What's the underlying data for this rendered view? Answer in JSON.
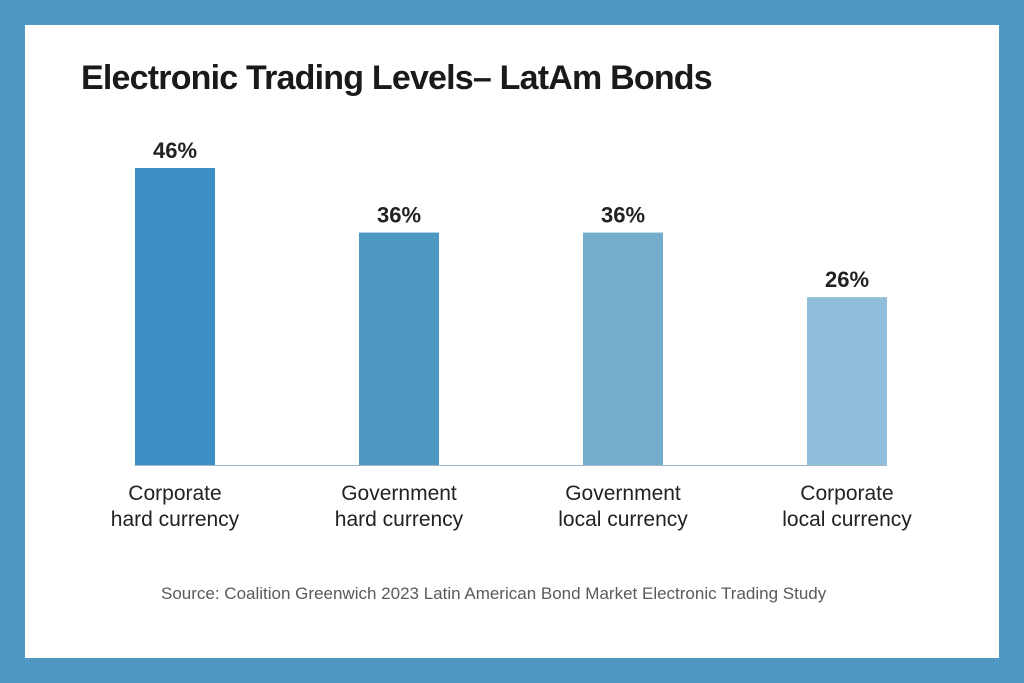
{
  "title": "Electronic Trading Levels– LatAm Bonds",
  "source": "Source: Coalition Greenwich 2023 Latin American Bond Market Electronic Trading Study",
  "colors": {
    "background": "#4f98c4",
    "panel": "#ffffff",
    "axis": "#9fb7c6",
    "bars": [
      "#3b8fc2",
      "#4f98c4",
      "#74accb",
      "#91bedb"
    ]
  },
  "chart_data": {
    "type": "bar",
    "title": "Electronic Trading Levels– LatAm Bonds",
    "categories": [
      [
        "Corporate",
        "hard currency"
      ],
      [
        "Government",
        "hard currency"
      ],
      [
        "Government",
        "local currency"
      ],
      [
        "Corporate",
        "local currency"
      ]
    ],
    "values": [
      46,
      36,
      36,
      26
    ],
    "value_labels": [
      "46%",
      "36%",
      "36%",
      "26%"
    ],
    "unit": "%",
    "ylim": [
      0,
      46
    ],
    "grid": false,
    "legend": "none"
  }
}
